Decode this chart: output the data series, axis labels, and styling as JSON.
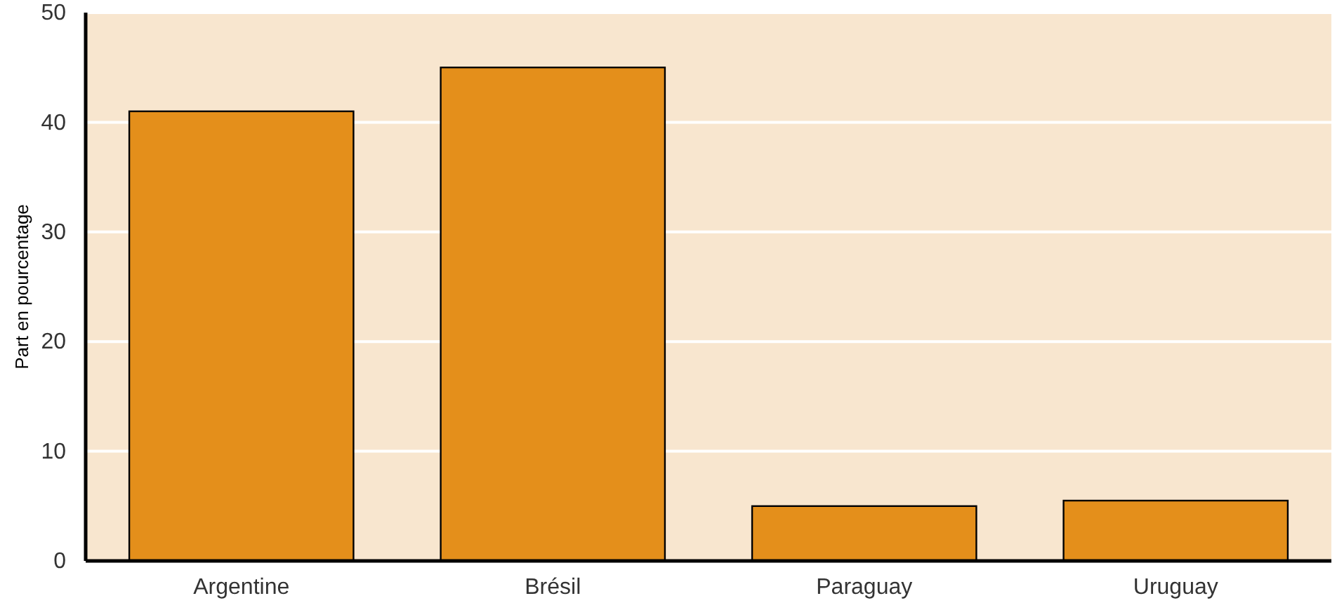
{
  "chart_data": {
    "type": "bar",
    "ylabel": "Part en pourcentage",
    "categories": [
      "Argentine",
      "Brésil",
      "Paraguay",
      "Uruguay"
    ],
    "values": [
      41,
      45,
      5,
      5.5
    ],
    "color": "#e48f1b",
    "ylim": [
      0,
      50
    ],
    "yticks": [
      0,
      10,
      20,
      30,
      40,
      50
    ],
    "grid": "y"
  }
}
